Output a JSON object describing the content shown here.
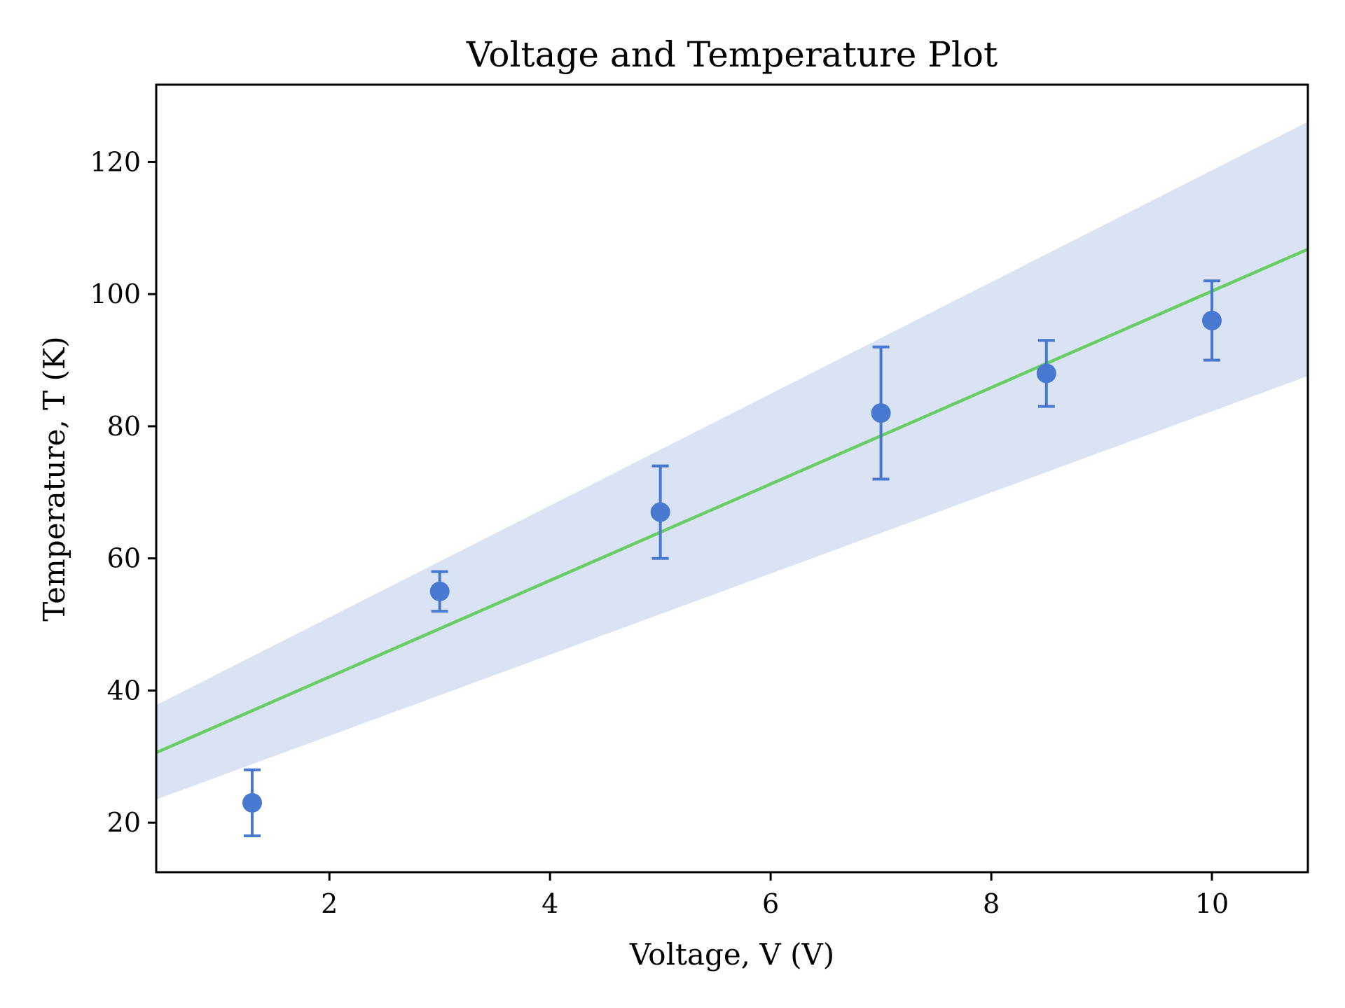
{
  "chart_data": {
    "type": "scatter",
    "title": "Voltage and Temperature Plot",
    "xlabel": "Voltage, V (V)",
    "ylabel": "Temperature, T (K)",
    "xlim": [
      0.43,
      10.87
    ],
    "ylim": [
      12.5,
      131.7
    ],
    "grid": false,
    "legend": "none",
    "x_ticks": [
      2,
      4,
      6,
      8,
      10
    ],
    "x_tick_labels": [
      "2",
      "4",
      "6",
      "8",
      "10"
    ],
    "y_ticks": [
      20,
      40,
      60,
      80,
      100,
      120
    ],
    "y_tick_labels": [
      "20",
      "40",
      "60",
      "80",
      "100",
      "120"
    ],
    "series": [
      {
        "name": "measurements",
        "kind": "errorbar",
        "color": "#4878cf",
        "x": [
          1.3,
          3,
          5,
          7,
          8.5,
          10
        ],
        "y": [
          23,
          55,
          67,
          82,
          88,
          96
        ],
        "yerr": [
          5,
          3,
          7,
          10,
          5,
          6
        ]
      },
      {
        "name": "linear fit",
        "kind": "line",
        "color": "#6acc64",
        "slope": 7.3,
        "intercept": 27.46,
        "x": [
          0.43,
          10.87
        ],
        "y": [
          30.6,
          106.8
        ]
      },
      {
        "name": "confidence band",
        "kind": "area",
        "color": "#dae3f4",
        "x": [
          0.43,
          10.87
        ],
        "y_upper": [
          37.8,
          126.1
        ],
        "y_lower": [
          23.5,
          87.6
        ]
      }
    ]
  }
}
